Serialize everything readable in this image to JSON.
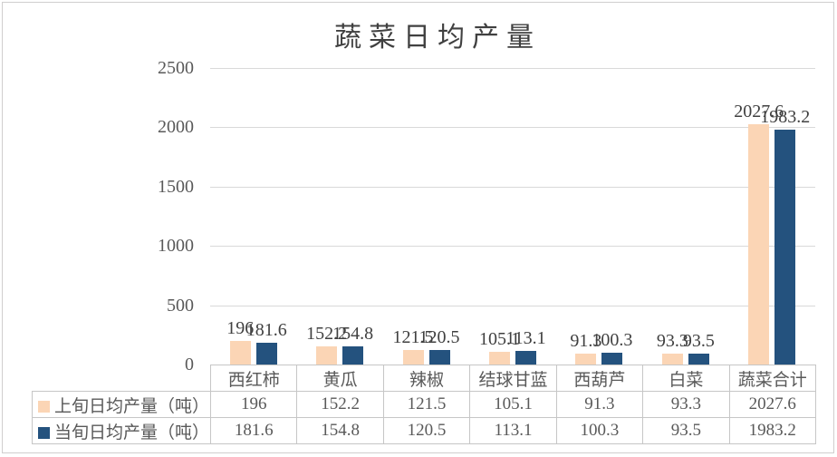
{
  "chart_data": {
    "type": "bar",
    "title": "蔬菜日均产量",
    "categories": [
      "西红柿",
      "黄瓜",
      "辣椒",
      "结球甘蓝",
      "西葫芦",
      "白菜",
      "蔬菜合计"
    ],
    "series": [
      {
        "name": "上旬日均产量（吨）",
        "color": "#FBD5B5",
        "values": [
          196,
          152.2,
          121.5,
          105.1,
          91.3,
          93.3,
          2027.6
        ]
      },
      {
        "name": "当旬日均产量（吨）",
        "color": "#24527E",
        "values": [
          181.6,
          154.8,
          120.5,
          113.1,
          100.3,
          93.5,
          1983.2
        ]
      }
    ],
    "y_ticks": [
      0,
      500,
      1000,
      1500,
      2000,
      2500
    ],
    "ylim": [
      0,
      2500
    ],
    "xlabel": "",
    "ylabel": "",
    "grid": "horizontal",
    "data_labels": true,
    "legend_position": "left-of-data-table",
    "data_table_shown": true
  },
  "colors": {
    "series_1": "#FBD5B5",
    "series_2": "#24527E",
    "gridline": "#D9D9D9",
    "table_border": "#C6C6C6",
    "axis_text": "#595959",
    "data_label_text": "#404040",
    "title_text": "#404040",
    "chart_border": "#D0CECE",
    "background": "#FFFFFF"
  }
}
